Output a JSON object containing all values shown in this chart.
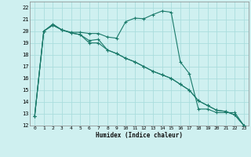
{
  "xlabel": "Humidex (Indice chaleur)",
  "bg_color": "#cff0f0",
  "grid_color": "#aadddd",
  "line_color": "#1a7a6a",
  "xlim": [
    -0.5,
    23.5
  ],
  "ylim": [
    12,
    22.5
  ],
  "xticks": [
    0,
    1,
    2,
    3,
    4,
    5,
    6,
    7,
    8,
    9,
    10,
    11,
    12,
    13,
    14,
    15,
    16,
    17,
    18,
    19,
    20,
    21,
    22,
    23
  ],
  "yticks": [
    12,
    13,
    14,
    15,
    16,
    17,
    18,
    19,
    20,
    21,
    22
  ],
  "series1_x": [
    0,
    1,
    2,
    3,
    4,
    5,
    6,
    7,
    8,
    9,
    10,
    11,
    12,
    13,
    14,
    15,
    16,
    17,
    18,
    19,
    20,
    21,
    22,
    23
  ],
  "series1_y": [
    12.8,
    20.0,
    20.6,
    20.1,
    19.9,
    19.9,
    19.8,
    19.8,
    19.5,
    19.4,
    20.8,
    21.1,
    21.05,
    21.4,
    21.7,
    21.6,
    17.4,
    16.4,
    13.4,
    13.4,
    13.1,
    13.1,
    13.1,
    12.0
  ],
  "series2_x": [
    0,
    1,
    2,
    3,
    4,
    5,
    6,
    7,
    8,
    9,
    10,
    11,
    12,
    13,
    14,
    15,
    16,
    17,
    18,
    19,
    20,
    21,
    22,
    23
  ],
  "series2_y": [
    12.8,
    20.0,
    20.5,
    20.1,
    19.85,
    19.7,
    19.2,
    19.3,
    18.4,
    18.1,
    17.7,
    17.4,
    17.0,
    16.6,
    16.3,
    16.0,
    15.5,
    15.0,
    14.1,
    13.7,
    13.3,
    13.2,
    12.9,
    12.0
  ],
  "series3_x": [
    0,
    1,
    2,
    3,
    4,
    5,
    6,
    7,
    8,
    9,
    10,
    11,
    12,
    13,
    14,
    15,
    16,
    17,
    18,
    19,
    20,
    21,
    22,
    23
  ],
  "series3_y": [
    12.8,
    20.0,
    20.5,
    20.1,
    19.85,
    19.7,
    19.0,
    19.0,
    18.4,
    18.1,
    17.7,
    17.4,
    17.0,
    16.6,
    16.3,
    16.0,
    15.5,
    15.0,
    14.1,
    13.7,
    13.3,
    13.2,
    12.9,
    12.0
  ]
}
